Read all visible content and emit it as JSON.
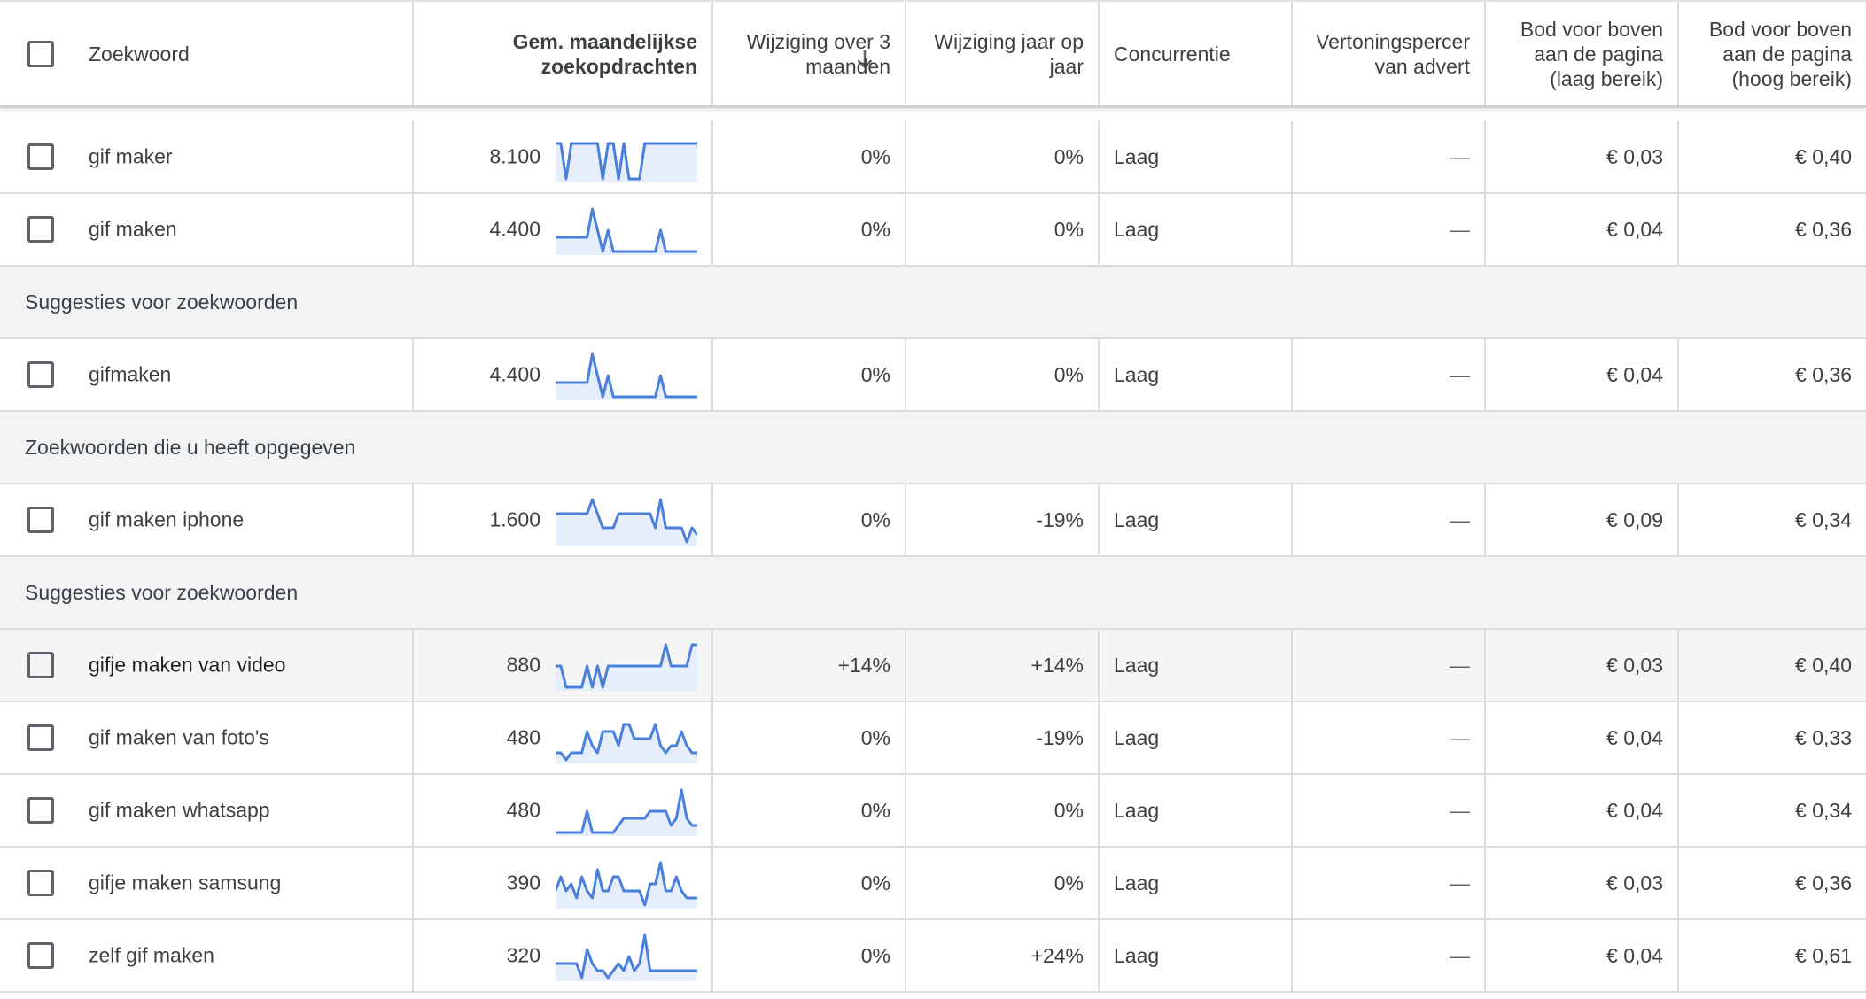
{
  "header": {
    "keyword": "Zoekwoord",
    "avg_monthly_l1": "Gem. maandelijkse",
    "avg_monthly_l2": "zoekopdrachten",
    "change_3m_l1": "Wijziging over 3",
    "change_3m_l2": "maanden",
    "change_yoy_l1": "Wijziging jaar op",
    "change_yoy_l2": "jaar",
    "competition": "Concurrentie",
    "impression_l1": "Vertoningspercer",
    "impression_l2": "van advert",
    "bid_low_l1": "Bod voor boven",
    "bid_low_l2": "aan de pagina",
    "bid_low_l3": "(laag bereik)",
    "bid_high_l1": "Bod voor boven",
    "bid_high_l2": "aan de pagina",
    "bid_high_l3": "(hoog bereik)"
  },
  "colors": {
    "trend_line": "#4a7fdb",
    "trend_fill": "#e6eefb",
    "group_bg": "#f1f3f4",
    "hover_bg": "#f5f5f5"
  },
  "rows": [
    {
      "type": "keyword",
      "keyword": "gif maker",
      "avg": "8.100",
      "change3m": "0%",
      "yoy": "0%",
      "competition": "Laag",
      "impression": "—",
      "bid_low": "€ 0,03",
      "bid_high": "€ 0,40",
      "trend": [
        5,
        5,
        0,
        5,
        5,
        5,
        5,
        5,
        5,
        0,
        5,
        5,
        0,
        5,
        0,
        0,
        0,
        5,
        5,
        5,
        5,
        5,
        5,
        5,
        5,
        5,
        5,
        5
      ]
    },
    {
      "type": "keyword",
      "keyword": "gif maken",
      "avg": "4.400",
      "change3m": "0%",
      "yoy": "0%",
      "competition": "Laag",
      "impression": "—",
      "bid_low": "€ 0,04",
      "bid_high": "€ 0,36",
      "trend": [
        2,
        2,
        2,
        2,
        2,
        2,
        2,
        6,
        3,
        0,
        3,
        0,
        0,
        0,
        0,
        0,
        0,
        0,
        0,
        0,
        3,
        0,
        0,
        0,
        0,
        0,
        0,
        0
      ]
    },
    {
      "type": "group",
      "label": "Suggesties voor zoekwoorden"
    },
    {
      "type": "keyword",
      "keyword": "gifmaken",
      "avg": "4.400",
      "change3m": "0%",
      "yoy": "0%",
      "competition": "Laag",
      "impression": "—",
      "bid_low": "€ 0,04",
      "bid_high": "€ 0,36",
      "trend": [
        2,
        2,
        2,
        2,
        2,
        2,
        2,
        6,
        3,
        0,
        3,
        0,
        0,
        0,
        0,
        0,
        0,
        0,
        0,
        0,
        3,
        0,
        0,
        0,
        0,
        0,
        0,
        0
      ]
    },
    {
      "type": "group",
      "label": "Zoekwoorden die u heeft opgegeven"
    },
    {
      "type": "keyword",
      "keyword": "gif maken iphone",
      "avg": "1.600",
      "change3m": "0%",
      "yoy": "-19%",
      "competition": "Laag",
      "impression": "—",
      "bid_low": "€ 0,09",
      "bid_high": "€ 0,34",
      "trend": [
        4,
        4,
        4,
        4,
        4,
        4,
        4,
        6,
        4,
        2,
        2,
        2,
        4,
        4,
        4,
        4,
        4,
        4,
        4,
        2,
        6,
        2,
        2,
        2,
        2,
        0,
        2,
        1
      ]
    },
    {
      "type": "group",
      "label": "Suggesties voor zoekwoorden"
    },
    {
      "type": "keyword",
      "keyword": "gifje maken van video",
      "avg": "880",
      "change3m": "+14%",
      "yoy": "+14%",
      "competition": "Laag",
      "impression": "—",
      "bid_low": "€ 0,03",
      "bid_high": "€ 0,40",
      "hover": true,
      "trend": [
        3,
        3,
        0,
        0,
        0,
        0,
        3,
        0,
        3,
        0,
        3,
        3,
        3,
        3,
        3,
        3,
        3,
        3,
        3,
        3,
        3,
        6,
        3,
        3,
        3,
        3,
        6,
        6
      ]
    },
    {
      "type": "keyword",
      "keyword": "gif maken van foto's",
      "avg": "480",
      "change3m": "0%",
      "yoy": "-19%",
      "competition": "Laag",
      "impression": "—",
      "bid_low": "€ 0,04",
      "bid_high": "€ 0,33",
      "trend": [
        1,
        1,
        0,
        1,
        1,
        1,
        4,
        2,
        1,
        4,
        4,
        4,
        2,
        5,
        5,
        3,
        3,
        3,
        3,
        5,
        2,
        1,
        2,
        2,
        4,
        2,
        1,
        1
      ]
    },
    {
      "type": "keyword",
      "keyword": "gif maken whatsapp",
      "avg": "480",
      "change3m": "0%",
      "yoy": "0%",
      "competition": "Laag",
      "impression": "—",
      "bid_low": "€ 0,04",
      "bid_high": "€ 0,34",
      "trend": [
        0,
        0,
        0,
        0,
        0,
        0,
        3,
        0,
        0,
        0,
        0,
        0,
        1,
        2,
        2,
        2,
        2,
        2,
        3,
        3,
        3,
        3,
        1,
        2,
        6,
        2,
        1,
        1
      ]
    },
    {
      "type": "keyword",
      "keyword": "gifje maken samsung",
      "avg": "390",
      "change3m": "0%",
      "yoy": "0%",
      "competition": "Laag",
      "impression": "—",
      "bid_low": "€ 0,03",
      "bid_high": "€ 0,36",
      "trend": [
        2,
        4,
        2,
        3,
        1,
        4,
        2,
        1,
        5,
        2,
        2,
        4,
        4,
        2,
        2,
        2,
        2,
        0,
        3,
        3,
        6,
        2,
        2,
        4,
        2,
        1,
        1,
        1
      ]
    },
    {
      "type": "keyword",
      "keyword": "zelf gif maken",
      "avg": "320",
      "change3m": "0%",
      "yoy": "+24%",
      "competition": "Laag",
      "impression": "—",
      "bid_low": "€ 0,04",
      "bid_high": "€ 0,61",
      "trend": [
        2,
        2,
        2,
        2,
        2,
        0,
        4,
        2,
        1,
        1,
        0,
        1,
        2,
        1,
        3,
        1,
        2,
        6,
        1,
        1,
        1,
        1,
        1,
        1,
        1,
        1,
        1,
        1
      ]
    }
  ]
}
